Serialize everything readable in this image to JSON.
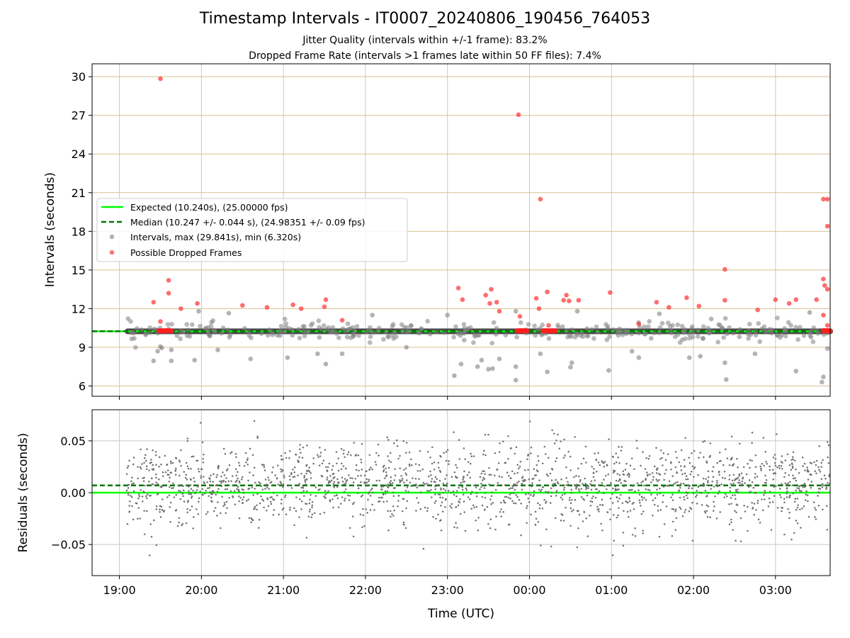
{
  "chart_data": [
    {
      "type": "scatter",
      "title": "Timestamp Intervals - IT0007_20240806_190456_764053",
      "subtitle_lines": [
        "Jitter Quality (intervals within +/-1 frame): 83.2%",
        "Dropped Frame Rate (intervals >1 frames late within 50 FF files): 7.4%"
      ],
      "xlabel": "",
      "ylabel": "Intervals (seconds)",
      "xlim": [
        "18:40",
        "03:40"
      ],
      "ylim": [
        5.2,
        31.0
      ],
      "yticks": [
        "6",
        "9",
        "12",
        "15",
        "18",
        "21",
        "24",
        "27",
        "30"
      ],
      "grid": true,
      "legend_position": "center-left",
      "legend": [
        "Expected (10.240s), (25.00000 fps)",
        "Median (10.247 +/- 0.044 s), (24.98351 +/- 0.09 fps)",
        "Intervals, max (29.841s), min (6.320s)",
        "Possible Dropped Frames"
      ],
      "lines": [
        {
          "name": "Expected",
          "y": 10.24,
          "color": "#00ff00",
          "style": "solid"
        },
        {
          "name": "Median",
          "y": 10.247,
          "color": "#007700",
          "style": "dashed"
        }
      ],
      "series": [
        {
          "name": "Possible Dropped Frames",
          "color": "#ff2020",
          "points": [
            [
              "19:30",
              29.84
            ],
            [
              "23:52",
              27.05
            ],
            [
              "00:08",
              20.5
            ],
            [
              "03:35",
              20.5
            ],
            [
              "03:38",
              20.5
            ],
            [
              "03:38",
              18.4
            ],
            [
              "02:23",
              15.05
            ],
            [
              "03:35",
              14.3
            ],
            [
              "03:36",
              13.8
            ],
            [
              "03:38",
              13.5
            ],
            [
              "19:36",
              14.2
            ],
            [
              "19:36",
              13.2
            ],
            [
              "19:25",
              12.5
            ],
            [
              "19:45",
              12.0
            ],
            [
              "19:57",
              12.4
            ],
            [
              "20:30",
              12.25
            ],
            [
              "20:48",
              12.1
            ],
            [
              "21:07",
              12.3
            ],
            [
              "21:13",
              12.0
            ],
            [
              "21:30",
              12.15
            ],
            [
              "21:31",
              12.7
            ],
            [
              "21:43",
              11.1
            ],
            [
              "23:08",
              13.6
            ],
            [
              "23:11",
              12.7
            ],
            [
              "23:28",
              13.05
            ],
            [
              "23:32",
              13.5
            ],
            [
              "23:31",
              12.4
            ],
            [
              "23:36",
              12.5
            ],
            [
              "23:38",
              11.8
            ],
            [
              "23:53",
              11.4
            ],
            [
              "00:05",
              12.8
            ],
            [
              "00:07",
              12.0
            ],
            [
              "00:13",
              13.3
            ],
            [
              "00:25",
              12.65
            ],
            [
              "00:27",
              13.05
            ],
            [
              "00:29",
              12.6
            ],
            [
              "00:36",
              12.65
            ],
            [
              "00:59",
              13.25
            ],
            [
              "01:20",
              10.8
            ],
            [
              "01:33",
              12.5
            ],
            [
              "01:42",
              12.1
            ],
            [
              "01:55",
              12.85
            ],
            [
              "02:04",
              12.2
            ],
            [
              "02:23",
              12.65
            ],
            [
              "02:47",
              11.9
            ],
            [
              "03:00",
              12.7
            ],
            [
              "03:10",
              12.4
            ],
            [
              "03:15",
              12.7
            ],
            [
              "03:30",
              12.7
            ],
            [
              "03:35",
              11.5
            ],
            [
              "03:38",
              10.7
            ],
            [
              "19:30",
              11.0
            ],
            [
              "00:14",
              10.7
            ]
          ],
          "clusters": [
            [
              "19:29",
              "19:38",
              10.28
            ],
            [
              "23:51",
              "23:58",
              10.28
            ],
            [
              "00:10",
              "00:19",
              10.28
            ],
            [
              "03:35",
              "03:40",
              10.28
            ]
          ]
        },
        {
          "name": "Intervals",
          "color": "#808080",
          "points": [
            [
              "19:25",
              7.95
            ],
            [
              "19:28",
              8.7
            ],
            [
              "19:30",
              9.05
            ],
            [
              "19:31",
              8.95
            ],
            [
              "19:38",
              7.95
            ],
            [
              "19:38",
              8.8
            ],
            [
              "19:55",
              8.0
            ],
            [
              "20:12",
              8.8
            ],
            [
              "20:20",
              11.65
            ],
            [
              "20:36",
              8.1
            ],
            [
              "21:03",
              8.2
            ],
            [
              "21:25",
              8.5
            ],
            [
              "21:31",
              7.7
            ],
            [
              "21:43",
              8.5
            ],
            [
              "22:30",
              9.0
            ],
            [
              "23:05",
              6.8
            ],
            [
              "23:10",
              7.7
            ],
            [
              "23:22",
              7.5
            ],
            [
              "23:25",
              8.0
            ],
            [
              "23:30",
              7.3
            ],
            [
              "23:33",
              7.35
            ],
            [
              "23:38",
              8.1
            ],
            [
              "23:50",
              7.5
            ],
            [
              "23:50",
              6.45
            ],
            [
              "00:08",
              8.5
            ],
            [
              "00:13",
              7.1
            ],
            [
              "00:30",
              7.45
            ],
            [
              "00:31",
              7.8
            ],
            [
              "00:58",
              7.2
            ],
            [
              "01:15",
              8.7
            ],
            [
              "01:20",
              8.2
            ],
            [
              "01:57",
              8.2
            ],
            [
              "02:05",
              8.3
            ],
            [
              "02:23",
              7.8
            ],
            [
              "02:24",
              6.5
            ],
            [
              "02:45",
              8.5
            ],
            [
              "03:15",
              7.15
            ],
            [
              "03:35",
              6.7
            ],
            [
              "03:34",
              6.3
            ],
            [
              "03:38",
              8.9
            ],
            [
              "22:05",
              11.5
            ],
            [
              "23:00",
              11.5
            ],
            [
              "23:50",
              11.8
            ],
            [
              "00:35",
              11.8
            ],
            [
              "01:35",
              11.6
            ],
            [
              "03:25",
              11.7
            ],
            [
              "19:58",
              11.8
            ],
            [
              "02:13",
              11.2
            ]
          ],
          "band": [
            10.24,
            0.6
          ]
        }
      ]
    },
    {
      "type": "scatter",
      "xlabel": "Time (UTC)",
      "ylabel": "Residuals (seconds)",
      "ylim": [
        -0.08,
        0.08
      ],
      "yticks": [
        "−0.05",
        "0.00",
        "0.05"
      ],
      "xticks": [
        "19:00",
        "20:00",
        "21:00",
        "22:00",
        "23:00",
        "00:00",
        "01:00",
        "02:00",
        "03:00"
      ],
      "grid": true,
      "lines": [
        {
          "name": "Expected",
          "y": 0.0,
          "color": "#00ff00",
          "style": "solid"
        },
        {
          "name": "Median",
          "y": 0.007,
          "color": "#007700",
          "style": "dashed"
        }
      ],
      "series": [
        {
          "name": "Residuals",
          "color": "#707070",
          "x_range": [
            "19:05",
            "03:40"
          ],
          "count": 1900,
          "std": 0.02
        }
      ]
    }
  ]
}
